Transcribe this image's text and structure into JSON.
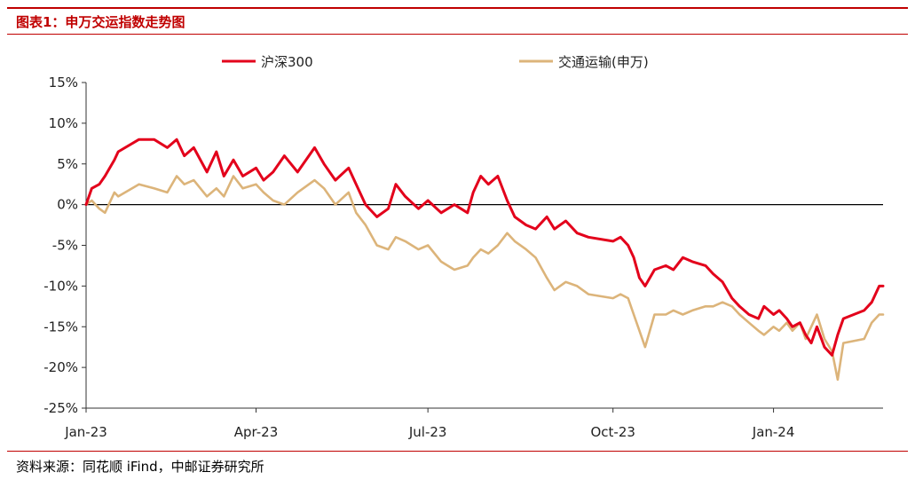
{
  "figure": {
    "title": "图表1：申万交运指数走势图",
    "source": "资料来源：同花顺 iFind，中邮证券研究所"
  },
  "chart_data": {
    "type": "line",
    "title": "",
    "xlabel": "",
    "ylabel": "",
    "ylim": [
      -25,
      15
    ],
    "yticks": [
      15,
      10,
      5,
      0,
      -5,
      -10,
      -15,
      -20,
      -25
    ],
    "ytick_labels": [
      "15%",
      "10%",
      "5%",
      "0%",
      "-5%",
      "-10%",
      "-15%",
      "-20%",
      "-25%"
    ],
    "xticks": [
      "2023-01-03",
      "2023-04-03",
      "2023-07-03",
      "2023-10-09",
      "2024-01-02"
    ],
    "xtick_labels": [
      "Jan-23",
      "Apr-23",
      "Jul-23",
      "Oct-23",
      "Jan-24"
    ],
    "xlim": [
      "2023-01-03",
      "2024-02-29"
    ],
    "legend_position": "top",
    "zero_line": true,
    "grid": false,
    "series": [
      {
        "name": "沪深300",
        "color": "#e3001b",
        "points": [
          [
            "2023-01-03",
            0.0
          ],
          [
            "2023-01-06",
            2.0
          ],
          [
            "2023-01-10",
            2.5
          ],
          [
            "2023-01-13",
            3.5
          ],
          [
            "2023-01-18",
            5.5
          ],
          [
            "2023-01-20",
            6.5
          ],
          [
            "2023-01-31",
            8.0
          ],
          [
            "2023-02-08",
            8.0
          ],
          [
            "2023-02-15",
            7.0
          ],
          [
            "2023-02-20",
            8.0
          ],
          [
            "2023-02-24",
            6.0
          ],
          [
            "2023-03-01",
            7.0
          ],
          [
            "2023-03-08",
            4.0
          ],
          [
            "2023-03-13",
            6.5
          ],
          [
            "2023-03-17",
            3.5
          ],
          [
            "2023-03-22",
            5.5
          ],
          [
            "2023-03-27",
            3.5
          ],
          [
            "2023-04-03",
            4.5
          ],
          [
            "2023-04-07",
            3.0
          ],
          [
            "2023-04-12",
            4.0
          ],
          [
            "2023-04-18",
            6.0
          ],
          [
            "2023-04-25",
            4.0
          ],
          [
            "2023-05-04",
            7.0
          ],
          [
            "2023-05-09",
            5.0
          ],
          [
            "2023-05-15",
            3.0
          ],
          [
            "2023-05-22",
            4.5
          ],
          [
            "2023-05-26",
            2.5
          ],
          [
            "2023-05-31",
            0.0
          ],
          [
            "2023-06-06",
            -1.5
          ],
          [
            "2023-06-12",
            -0.5
          ],
          [
            "2023-06-16",
            2.5
          ],
          [
            "2023-06-21",
            1.0
          ],
          [
            "2023-06-28",
            -0.5
          ],
          [
            "2023-07-03",
            0.5
          ],
          [
            "2023-07-10",
            -1.0
          ],
          [
            "2023-07-17",
            0.0
          ],
          [
            "2023-07-24",
            -1.0
          ],
          [
            "2023-07-27",
            1.5
          ],
          [
            "2023-07-31",
            3.5
          ],
          [
            "2023-08-04",
            2.5
          ],
          [
            "2023-08-09",
            3.5
          ],
          [
            "2023-08-14",
            0.5
          ],
          [
            "2023-08-18",
            -1.5
          ],
          [
            "2023-08-24",
            -2.5
          ],
          [
            "2023-08-29",
            -3.0
          ],
          [
            "2023-09-04",
            -1.5
          ],
          [
            "2023-09-08",
            -3.0
          ],
          [
            "2023-09-14",
            -2.0
          ],
          [
            "2023-09-20",
            -3.5
          ],
          [
            "2023-09-26",
            -4.0
          ],
          [
            "2023-10-09",
            -4.5
          ],
          [
            "2023-10-13",
            -4.0
          ],
          [
            "2023-10-17",
            -5.0
          ],
          [
            "2023-10-20",
            -6.5
          ],
          [
            "2023-10-23",
            -9.0
          ],
          [
            "2023-10-26",
            -10.0
          ],
          [
            "2023-10-31",
            -8.0
          ],
          [
            "2023-11-06",
            -7.5
          ],
          [
            "2023-11-10",
            -8.0
          ],
          [
            "2023-11-15",
            -6.5
          ],
          [
            "2023-11-20",
            -7.0
          ],
          [
            "2023-11-27",
            -7.5
          ],
          [
            "2023-12-01",
            -8.5
          ],
          [
            "2023-12-06",
            -9.5
          ],
          [
            "2023-12-11",
            -11.5
          ],
          [
            "2023-12-15",
            -12.5
          ],
          [
            "2023-12-20",
            -13.5
          ],
          [
            "2023-12-25",
            -14.0
          ],
          [
            "2023-12-28",
            -12.5
          ],
          [
            "2024-01-02",
            -13.5
          ],
          [
            "2024-01-05",
            -13.0
          ],
          [
            "2024-01-09",
            -14.0
          ],
          [
            "2024-01-12",
            -15.0
          ],
          [
            "2024-01-16",
            -14.5
          ],
          [
            "2024-01-19",
            -16.0
          ],
          [
            "2024-01-22",
            -17.0
          ],
          [
            "2024-01-25",
            -15.0
          ],
          [
            "2024-01-29",
            -17.5
          ],
          [
            "2024-02-02",
            -18.5
          ],
          [
            "2024-02-05",
            -16.0
          ],
          [
            "2024-02-08",
            -14.0
          ],
          [
            "2024-02-19",
            -13.0
          ],
          [
            "2024-02-23",
            -12.0
          ],
          [
            "2024-02-27",
            -10.0
          ],
          [
            "2024-02-29",
            -10.0
          ]
        ]
      },
      {
        "name": "交通运输(申万)",
        "color": "#dcb47a",
        "points": [
          [
            "2023-01-03",
            0.0
          ],
          [
            "2023-01-06",
            0.5
          ],
          [
            "2023-01-10",
            -0.5
          ],
          [
            "2023-01-13",
            -1.0
          ],
          [
            "2023-01-18",
            1.5
          ],
          [
            "2023-01-20",
            1.0
          ],
          [
            "2023-01-31",
            2.5
          ],
          [
            "2023-02-08",
            2.0
          ],
          [
            "2023-02-15",
            1.5
          ],
          [
            "2023-02-20",
            3.5
          ],
          [
            "2023-02-24",
            2.5
          ],
          [
            "2023-03-01",
            3.0
          ],
          [
            "2023-03-08",
            1.0
          ],
          [
            "2023-03-13",
            2.0
          ],
          [
            "2023-03-17",
            1.0
          ],
          [
            "2023-03-22",
            3.5
          ],
          [
            "2023-03-27",
            2.0
          ],
          [
            "2023-04-03",
            2.5
          ],
          [
            "2023-04-07",
            1.5
          ],
          [
            "2023-04-12",
            0.5
          ],
          [
            "2023-04-18",
            0.0
          ],
          [
            "2023-04-25",
            1.5
          ],
          [
            "2023-05-04",
            3.0
          ],
          [
            "2023-05-09",
            2.0
          ],
          [
            "2023-05-15",
            0.0
          ],
          [
            "2023-05-22",
            1.5
          ],
          [
            "2023-05-26",
            -1.0
          ],
          [
            "2023-05-31",
            -2.5
          ],
          [
            "2023-06-06",
            -5.0
          ],
          [
            "2023-06-12",
            -5.5
          ],
          [
            "2023-06-16",
            -4.0
          ],
          [
            "2023-06-21",
            -4.5
          ],
          [
            "2023-06-28",
            -5.5
          ],
          [
            "2023-07-03",
            -5.0
          ],
          [
            "2023-07-10",
            -7.0
          ],
          [
            "2023-07-17",
            -8.0
          ],
          [
            "2023-07-24",
            -7.5
          ],
          [
            "2023-07-27",
            -6.5
          ],
          [
            "2023-07-31",
            -5.5
          ],
          [
            "2023-08-04",
            -6.0
          ],
          [
            "2023-08-09",
            -5.0
          ],
          [
            "2023-08-14",
            -3.5
          ],
          [
            "2023-08-18",
            -4.5
          ],
          [
            "2023-08-24",
            -5.5
          ],
          [
            "2023-08-29",
            -6.5
          ],
          [
            "2023-09-04",
            -9.0
          ],
          [
            "2023-09-08",
            -10.5
          ],
          [
            "2023-09-14",
            -9.5
          ],
          [
            "2023-09-20",
            -10.0
          ],
          [
            "2023-09-26",
            -11.0
          ],
          [
            "2023-10-09",
            -11.5
          ],
          [
            "2023-10-13",
            -11.0
          ],
          [
            "2023-10-17",
            -11.5
          ],
          [
            "2023-10-20",
            -13.5
          ],
          [
            "2023-10-23",
            -15.5
          ],
          [
            "2023-10-26",
            -17.5
          ],
          [
            "2023-10-31",
            -13.5
          ],
          [
            "2023-11-06",
            -13.5
          ],
          [
            "2023-11-10",
            -13.0
          ],
          [
            "2023-11-15",
            -13.5
          ],
          [
            "2023-11-20",
            -13.0
          ],
          [
            "2023-11-27",
            -12.5
          ],
          [
            "2023-12-01",
            -12.5
          ],
          [
            "2023-12-06",
            -12.0
          ],
          [
            "2023-12-11",
            -12.5
          ],
          [
            "2023-12-15",
            -13.5
          ],
          [
            "2023-12-20",
            -14.5
          ],
          [
            "2023-12-25",
            -15.5
          ],
          [
            "2023-12-28",
            -16.0
          ],
          [
            "2024-01-02",
            -15.0
          ],
          [
            "2024-01-05",
            -15.5
          ],
          [
            "2024-01-09",
            -14.5
          ],
          [
            "2024-01-12",
            -15.5
          ],
          [
            "2024-01-16",
            -14.5
          ],
          [
            "2024-01-19",
            -16.5
          ],
          [
            "2024-01-22",
            -15.0
          ],
          [
            "2024-01-25",
            -13.5
          ],
          [
            "2024-01-29",
            -16.5
          ],
          [
            "2024-02-02",
            -18.0
          ],
          [
            "2024-02-05",
            -21.5
          ],
          [
            "2024-02-08",
            -17.0
          ],
          [
            "2024-02-19",
            -16.5
          ],
          [
            "2024-02-23",
            -14.5
          ],
          [
            "2024-02-27",
            -13.5
          ],
          [
            "2024-02-29",
            -13.5
          ]
        ]
      }
    ]
  }
}
